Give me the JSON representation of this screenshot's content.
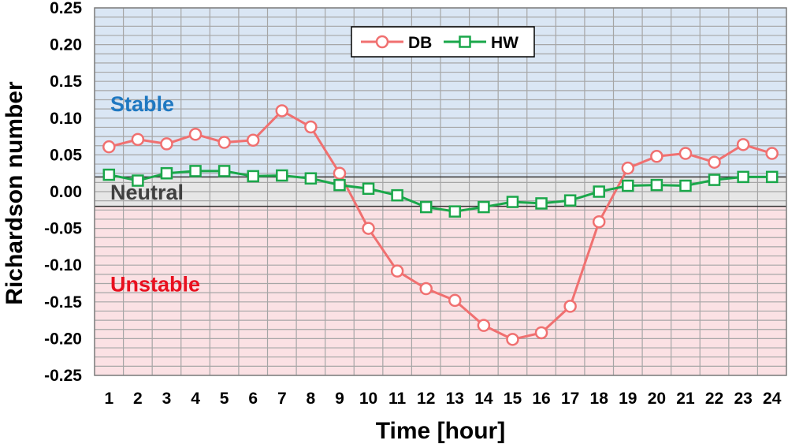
{
  "chart_data": {
    "type": "line",
    "xlabel": "Time [hour]",
    "ylabel": "Richardson number",
    "ylim": [
      -0.25,
      0.25
    ],
    "y_ticks": [
      "0.25",
      "0.20",
      "0.15",
      "0.10",
      "0.05",
      "0.00",
      "-0.05",
      "-0.10",
      "-0.15",
      "-0.20",
      "-0.25"
    ],
    "y_tick_values": [
      0.25,
      0.2,
      0.15,
      0.1,
      0.05,
      0.0,
      -0.05,
      -0.1,
      -0.15,
      -0.2,
      -0.25
    ],
    "categories": [
      "1",
      "2",
      "3",
      "4",
      "5",
      "6",
      "7",
      "8",
      "9",
      "10",
      "11",
      "12",
      "13",
      "14",
      "15",
      "16",
      "17",
      "18",
      "19",
      "20",
      "21",
      "22",
      "23",
      "24"
    ],
    "grid": true,
    "legend_position": "top-center",
    "zones": [
      {
        "label": "Stable",
        "from": 0.02,
        "to": 0.25,
        "fill": "#dae6f4",
        "label_color": "#1f78c1"
      },
      {
        "label": "Neutral",
        "from": -0.02,
        "to": 0.02,
        "fill": "#e6e6e6",
        "label_color": "#404040"
      },
      {
        "label": "Unstable",
        "from": -0.25,
        "to": -0.02,
        "fill": "#fbe1e4",
        "label_color": "#e8101f"
      }
    ],
    "series": [
      {
        "name": "DB",
        "color": "#f07070",
        "marker": "circle",
        "values": [
          0.061,
          0.071,
          0.065,
          0.078,
          0.067,
          0.07,
          0.11,
          0.088,
          0.025,
          -0.05,
          -0.108,
          -0.132,
          -0.148,
          -0.182,
          -0.201,
          -0.192,
          -0.156,
          -0.041,
          0.032,
          0.048,
          0.052,
          0.04,
          0.064,
          0.052
        ]
      },
      {
        "name": "HW",
        "color": "#1aa74a",
        "marker": "square",
        "values": [
          0.023,
          0.015,
          0.025,
          0.028,
          0.028,
          0.021,
          0.022,
          0.018,
          0.009,
          0.004,
          -0.005,
          -0.021,
          -0.027,
          -0.021,
          -0.014,
          -0.016,
          -0.012,
          0.0,
          0.008,
          0.009,
          0.008,
          0.016,
          0.02,
          0.02
        ]
      }
    ]
  }
}
